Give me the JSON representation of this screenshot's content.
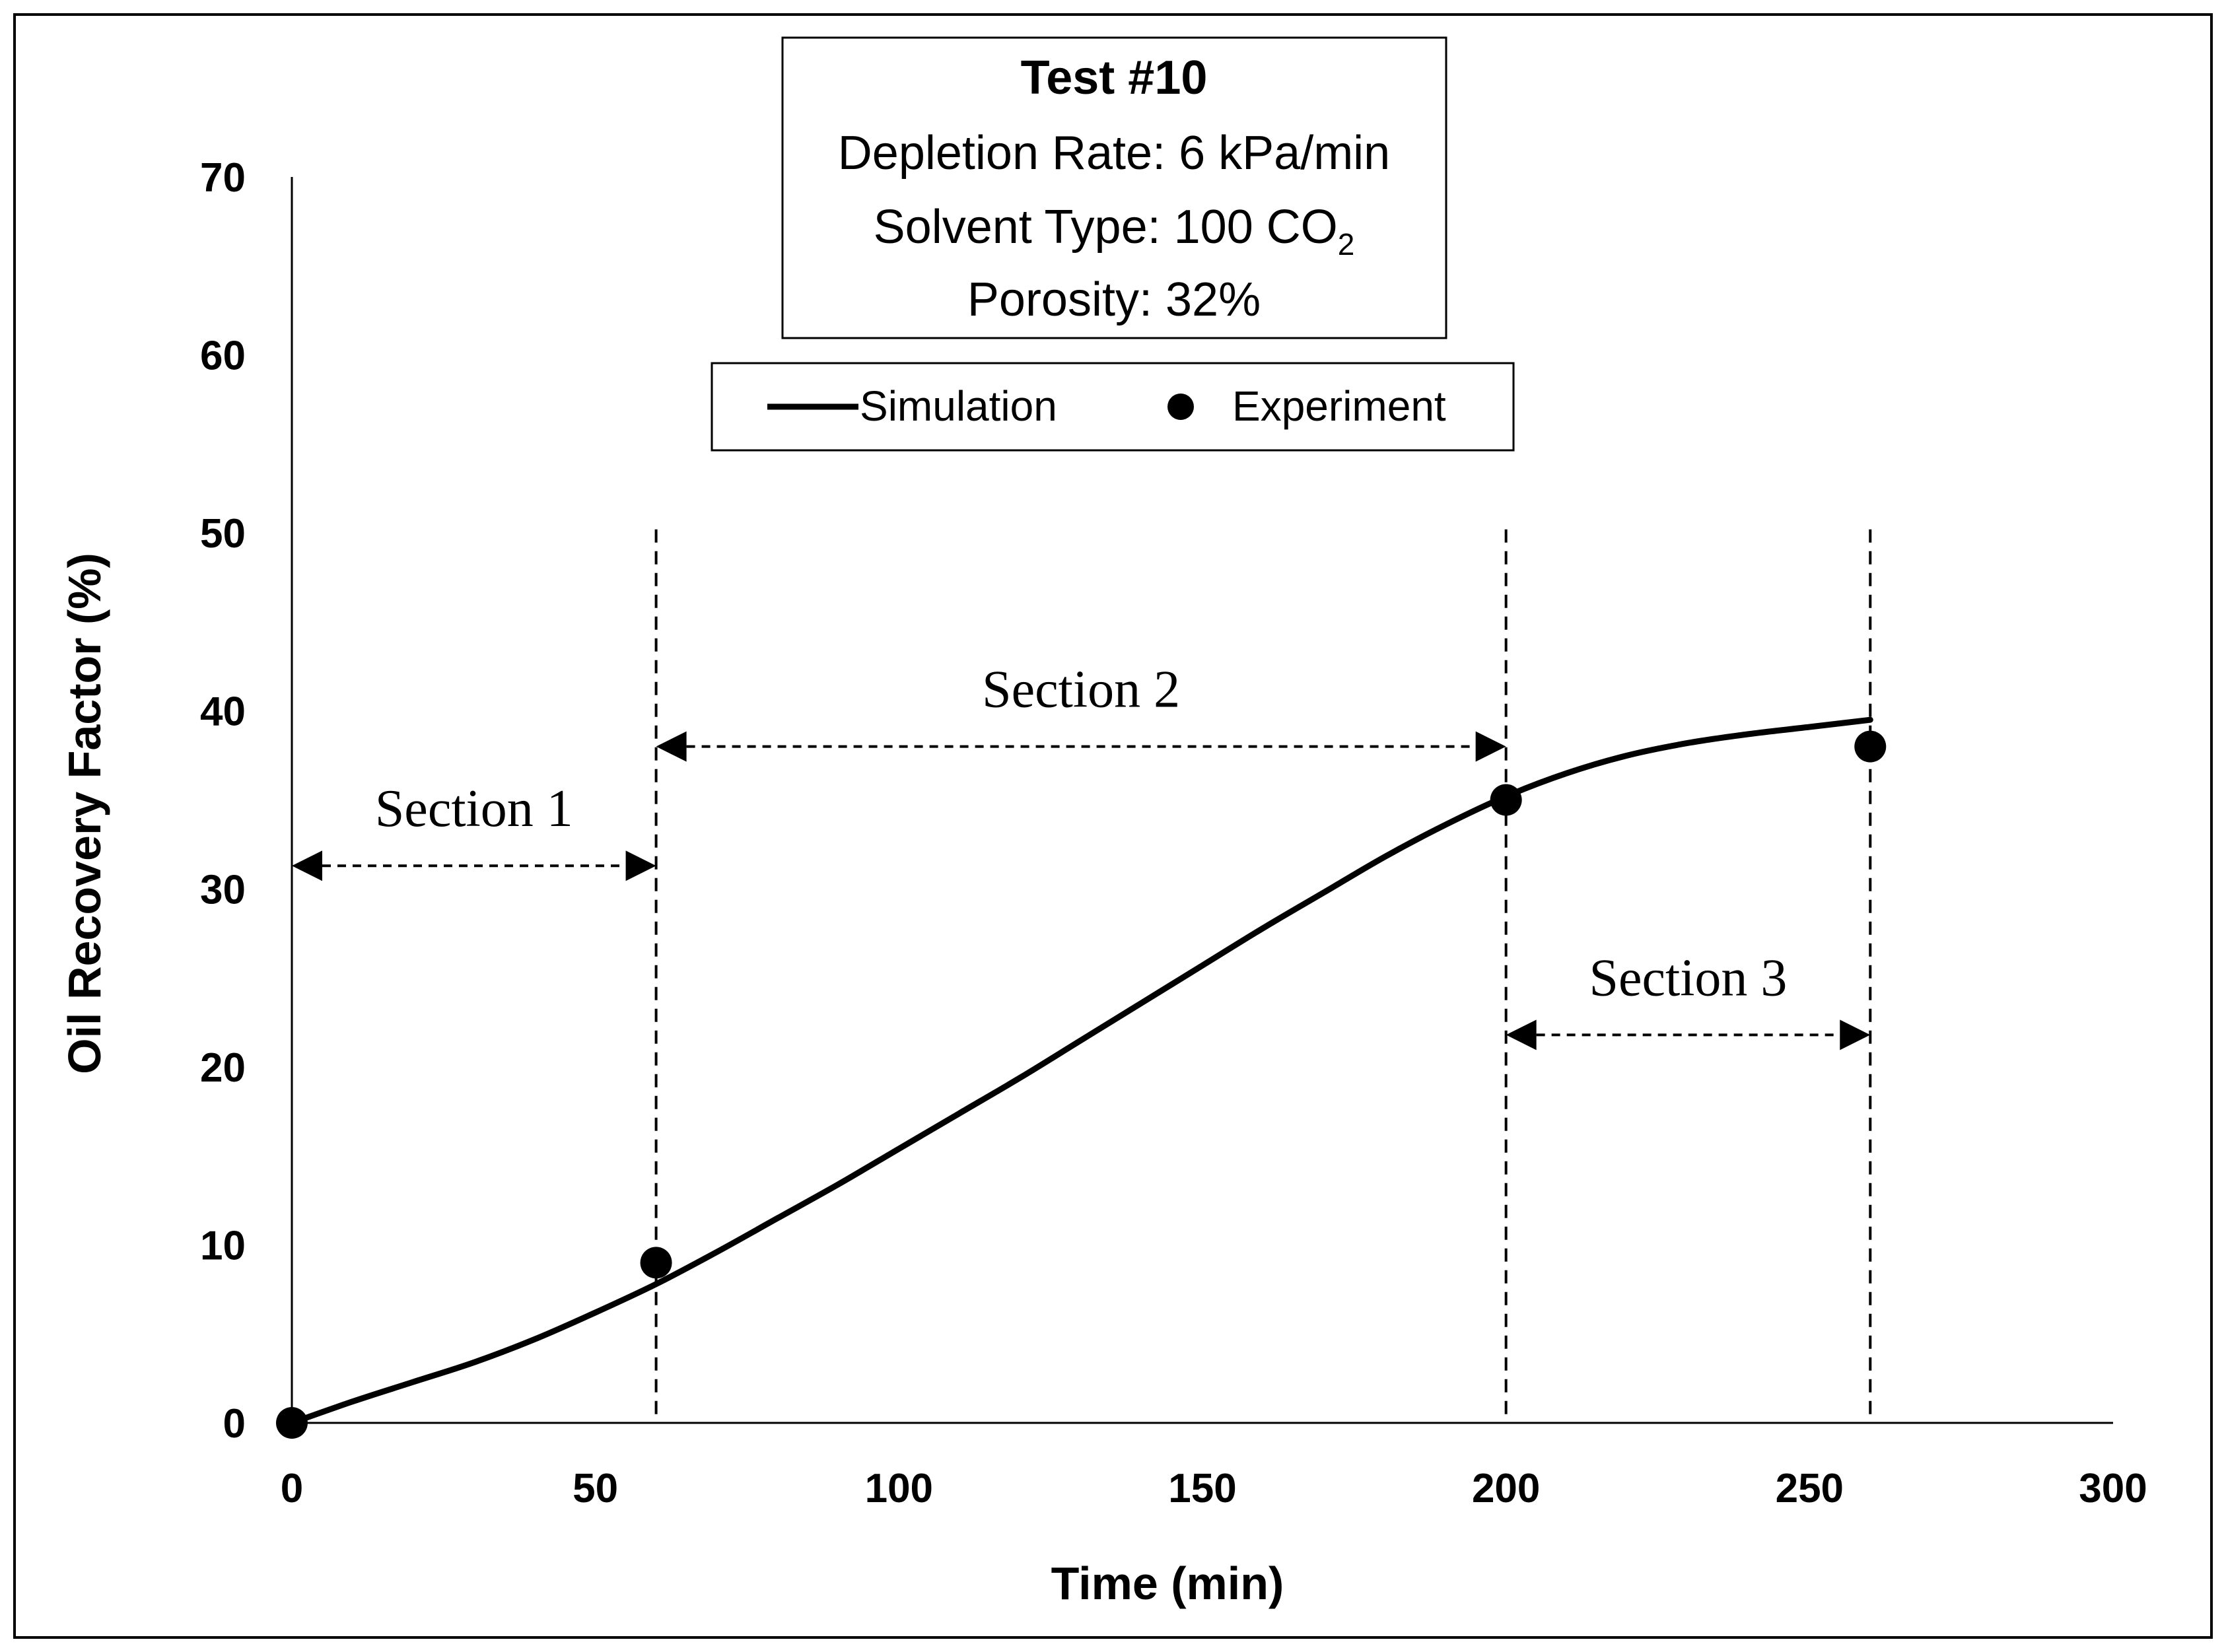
{
  "chart_data": {
    "type": "line",
    "info_box": {
      "title": "Test #10",
      "depletion_rate": "Depletion Rate: 6 kPa/min",
      "solvent_type_prefix": "Solvent Type: 100 CO",
      "solvent_type_subscript": "2",
      "porosity": "Porosity: 32%"
    },
    "legend": [
      {
        "name": "Simulation",
        "style": "line"
      },
      {
        "name": "Experiment",
        "style": "marker"
      }
    ],
    "xlabel": "Time (min)",
    "ylabel": "Oil Recovery Factor (%)",
    "xlim": [
      0,
      300
    ],
    "ylim": [
      0,
      70
    ],
    "x_ticks": [
      0,
      50,
      100,
      150,
      200,
      250,
      300
    ],
    "y_ticks": [
      0,
      10,
      20,
      30,
      40,
      50,
      60,
      70
    ],
    "series": [
      {
        "name": "Simulation",
        "x": [
          0,
          10,
          20,
          30,
          40,
          50,
          60,
          70,
          80,
          90,
          100,
          110,
          120,
          130,
          140,
          150,
          160,
          170,
          180,
          190,
          200,
          210,
          220,
          230,
          240,
          250,
          260
        ],
        "y": [
          0,
          1.2,
          2.3,
          3.4,
          4.7,
          6.2,
          7.8,
          9.6,
          11.5,
          13.4,
          15.4,
          17.4,
          19.4,
          21.5,
          23.6,
          25.7,
          27.8,
          29.8,
          31.8,
          33.6,
          35.2,
          36.5,
          37.5,
          38.2,
          38.7,
          39.1,
          39.5
        ]
      },
      {
        "name": "Experiment",
        "x": [
          0,
          60,
          200,
          260
        ],
        "y": [
          0,
          9,
          35,
          38
        ]
      }
    ],
    "section_markers": [
      60,
      200,
      260
    ],
    "sections": [
      {
        "label": "Section 1",
        "x_start": 0,
        "x_end": 60,
        "arrow_y": 31.3
      },
      {
        "label": "Section 2",
        "x_start": 60,
        "x_end": 200,
        "arrow_y": 38.0
      },
      {
        "label": "Section 3",
        "x_start": 200,
        "x_end": 260,
        "arrow_y": 21.8
      }
    ]
  }
}
